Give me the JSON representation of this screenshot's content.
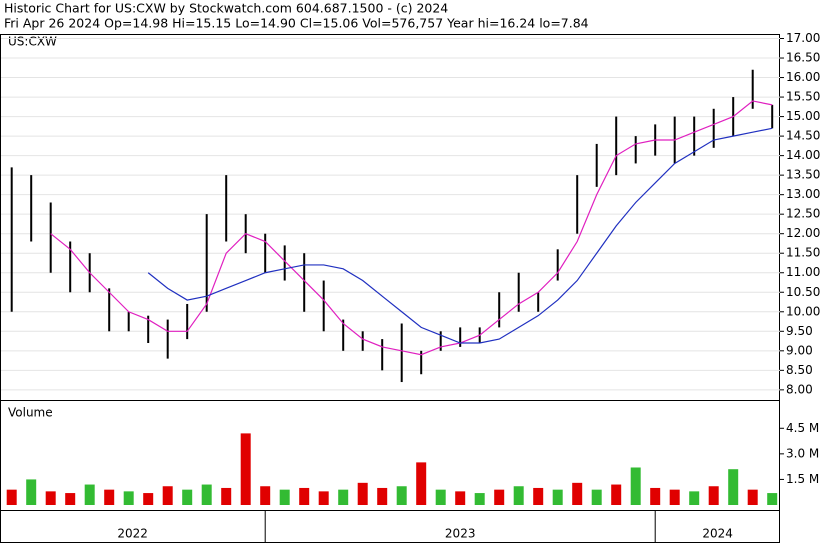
{
  "header": {
    "title": "Historic Chart for US:CXW by Stockwatch.com 604.687.1500 - (c) 2024",
    "subtitle": "Fri Apr 26 2024   Op=14.98   Hi=15.15   Lo=14.90   Cl=15.06   Vol=576,757   Year hi=16.24   lo=7.84"
  },
  "chart_data": [
    {
      "type": "ohlc",
      "label": "US:CXW",
      "color": "#000000",
      "grid": true,
      "x": [
        2022.35,
        2022.4,
        2022.45,
        2022.5,
        2022.55,
        2022.6,
        2022.65,
        2022.7,
        2022.75,
        2022.8,
        2022.85,
        2022.9,
        2022.95,
        2023,
        2023.05,
        2023.1,
        2023.15,
        2023.2,
        2023.25,
        2023.3,
        2023.35,
        2023.4,
        2023.45,
        2023.5,
        2023.55,
        2023.6,
        2023.65,
        2023.7,
        2023.75,
        2023.8,
        2023.85,
        2023.9,
        2023.95,
        2024,
        2024.05,
        2024.1,
        2024.15,
        2024.2,
        2024.25,
        2024.3
      ],
      "high": [
        13.7,
        13.5,
        12.8,
        11.8,
        11.5,
        10.6,
        10,
        9.9,
        9.8,
        10.2,
        12.5,
        13.5,
        12.5,
        12,
        11.7,
        11.5,
        10.8,
        9.8,
        9.5,
        9.3,
        9.7,
        9,
        9.5,
        9.6,
        9.6,
        10.5,
        11,
        10.5,
        11.6,
        13.5,
        14.3,
        15,
        14.5,
        14.8,
        15,
        15,
        15.2,
        15.5,
        16.2,
        15.3
      ],
      "low": [
        10,
        11.8,
        11,
        10.5,
        10.5,
        9.5,
        9.5,
        9.2,
        8.8,
        9.3,
        10,
        11.8,
        11.5,
        11,
        10.8,
        10,
        9.5,
        9,
        9,
        8.5,
        8.2,
        8.4,
        9,
        9.1,
        9.2,
        9.6,
        10,
        10,
        10.8,
        12,
        13.2,
        13.5,
        13.8,
        14,
        13.8,
        14,
        14.2,
        14.5,
        15.2,
        14.7
      ],
      "moving_averages": [
        {
          "color": "#e020c0",
          "values": [
            null,
            null,
            12.0,
            11.6,
            11.0,
            10.5,
            10.0,
            9.8,
            9.5,
            9.5,
            10.2,
            11.5,
            12.0,
            11.8,
            11.3,
            10.8,
            10.3,
            9.7,
            9.3,
            9.1,
            9.0,
            8.9,
            9.1,
            9.2,
            9.4,
            9.8,
            10.2,
            10.5,
            11.0,
            11.8,
            13.0,
            14.0,
            14.3,
            14.4,
            14.4,
            14.6,
            14.8,
            15.0,
            15.4,
            15.3
          ]
        },
        {
          "color": "#2030c0",
          "values": [
            null,
            null,
            null,
            null,
            null,
            null,
            null,
            11.0,
            10.6,
            10.3,
            10.4,
            10.6,
            10.8,
            11.0,
            11.1,
            11.2,
            11.2,
            11.1,
            10.8,
            10.4,
            10.0,
            9.6,
            9.4,
            9.2,
            9.2,
            9.3,
            9.6,
            9.9,
            10.3,
            10.8,
            11.5,
            12.2,
            12.8,
            13.3,
            13.8,
            14.1,
            14.4,
            14.5,
            14.6,
            14.7
          ]
        }
      ],
      "xlim": [
        2022.32,
        2024.32
      ],
      "ylim": [
        7.74,
        17.09
      ],
      "yticks": [
        {
          "value": 8,
          "label": "8.00"
        },
        {
          "value": 8.5,
          "label": "8.50"
        },
        {
          "value": 9,
          "label": "9.00"
        },
        {
          "value": 9.5,
          "label": "9.50"
        },
        {
          "value": 10,
          "label": "10.00"
        },
        {
          "value": 10.5,
          "label": "10.50"
        },
        {
          "value": 11,
          "label": "11.00"
        },
        {
          "value": 11.5,
          "label": "11.50"
        },
        {
          "value": 12,
          "label": "12.00"
        },
        {
          "value": 12.5,
          "label": "12.50"
        },
        {
          "value": 13,
          "label": "13.00"
        },
        {
          "value": 13.5,
          "label": "13.50"
        },
        {
          "value": 14,
          "label": "14.00"
        },
        {
          "value": 14.5,
          "label": "14.50"
        },
        {
          "value": 15,
          "label": "15.00"
        },
        {
          "value": 15.5,
          "label": "15.50"
        },
        {
          "value": 16,
          "label": "16.00"
        },
        {
          "value": 16.5,
          "label": "16.50"
        },
        {
          "value": 17,
          "label": "17.00"
        }
      ]
    },
    {
      "type": "bar",
      "label": "Volume",
      "x": [
        2022.35,
        2022.4,
        2022.45,
        2022.5,
        2022.55,
        2022.6,
        2022.65,
        2022.7,
        2022.75,
        2022.8,
        2022.85,
        2022.9,
        2022.95,
        2023,
        2023.05,
        2023.1,
        2023.15,
        2023.2,
        2023.25,
        2023.3,
        2023.35,
        2023.4,
        2023.45,
        2023.5,
        2023.55,
        2023.6,
        2023.65,
        2023.7,
        2023.75,
        2023.8,
        2023.85,
        2023.9,
        2023.95,
        2024,
        2024.05,
        2024.1,
        2024.15,
        2024.2,
        2024.25,
        2024.3
      ],
      "values": [
        900000,
        1500000,
        800000,
        700000,
        1200000,
        900000,
        800000,
        700000,
        1100000,
        900000,
        1200000,
        1000000,
        4200000,
        1100000,
        900000,
        1000000,
        800000,
        900000,
        1300000,
        1000000,
        1100000,
        2500000,
        900000,
        800000,
        700000,
        900000,
        1100000,
        1000000,
        900000,
        1300000,
        900000,
        1200000,
        2200000,
        1000000,
        900000,
        800000,
        1100000,
        2100000,
        900000,
        700000
      ],
      "colors": [
        "#e00000",
        "#33bb33",
        "#e00000",
        "#e00000",
        "#33bb33",
        "#e00000",
        "#33bb33",
        "#e00000",
        "#e00000",
        "#33bb33",
        "#33bb33",
        "#e00000",
        "#e00000",
        "#e00000",
        "#33bb33",
        "#e00000",
        "#e00000",
        "#33bb33",
        "#e00000",
        "#e00000",
        "#33bb33",
        "#e00000",
        "#33bb33",
        "#e00000",
        "#33bb33",
        "#e00000",
        "#33bb33",
        "#e00000",
        "#33bb33",
        "#e00000",
        "#33bb33",
        "#e00000",
        "#33bb33",
        "#e00000",
        "#e00000",
        "#33bb33",
        "#e00000",
        "#33bb33",
        "#e00000",
        "#33bb33"
      ],
      "xlim": [
        2022.32,
        2024.32
      ],
      "xticks": [
        {
          "value": 2022,
          "label": "2022"
        },
        {
          "value": 2023,
          "label": "2023"
        },
        {
          "value": 2024,
          "label": "2024"
        }
      ],
      "ylim": [
        0,
        6100000
      ],
      "yticks": [
        {
          "value": 1500000,
          "label": "1.5 M"
        },
        {
          "value": 3000000,
          "label": "3.0 M"
        },
        {
          "value": 4500000,
          "label": "4.5 M"
        }
      ]
    }
  ]
}
